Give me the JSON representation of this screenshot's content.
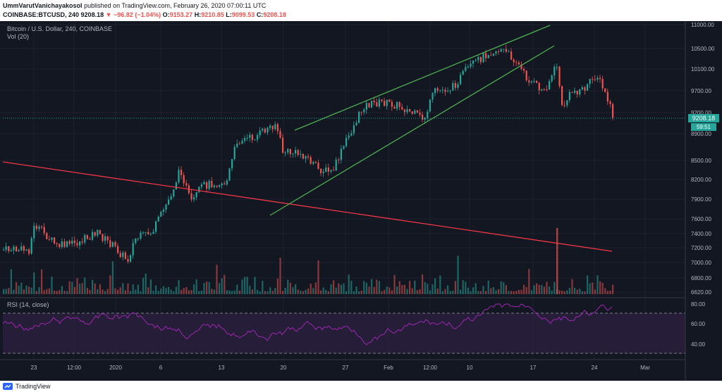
{
  "header": {
    "author": "UmmVarutVanichayakosol",
    "published": "published on TradingView.com, February 26, 2020 07:00:11 UTC",
    "symbol": "COINBASE:BTCUSD, 240",
    "last": "9208.18",
    "change": "−96.82 (−1.04%)",
    "o_label": "O:",
    "o": "9153.27",
    "h_label": "H:",
    "h": "9210.85",
    "l_label": "L:",
    "l": "9099.53",
    "c_label": "C:",
    "c": "9208.18"
  },
  "legend": {
    "title": "Bitcoin / U.S. Dollar, 240, COINBASE",
    "volume": "Vol (20)",
    "rsi": "RSI (14, close)"
  },
  "price_axis": [
    "11000.00",
    "10500.00",
    "10100.00",
    "9700.00",
    "9200.00",
    "8900.00",
    "8500.00",
    "8200.00",
    "7900.00",
    "7600.00",
    "7400.00",
    "7200.00",
    "7000.00",
    "6800.00",
    "6620.00"
  ],
  "price_badge": "9208.18",
  "countdown": "59:51",
  "rsi_axis": [
    "80.00",
    "60.00",
    "40.00"
  ],
  "time_axis": [
    "23",
    "12:00",
    "2020",
    "6",
    "13",
    "20",
    "27",
    "Feb",
    "12:00",
    "10",
    "17",
    "24",
    "Mar"
  ],
  "footer": {
    "brand": "TradingView"
  },
  "colors": {
    "up": "#26a69a",
    "down": "#ef5350",
    "channel": "#4caf50",
    "trend": "#f23645",
    "rsi": "#9c27b0"
  }
}
